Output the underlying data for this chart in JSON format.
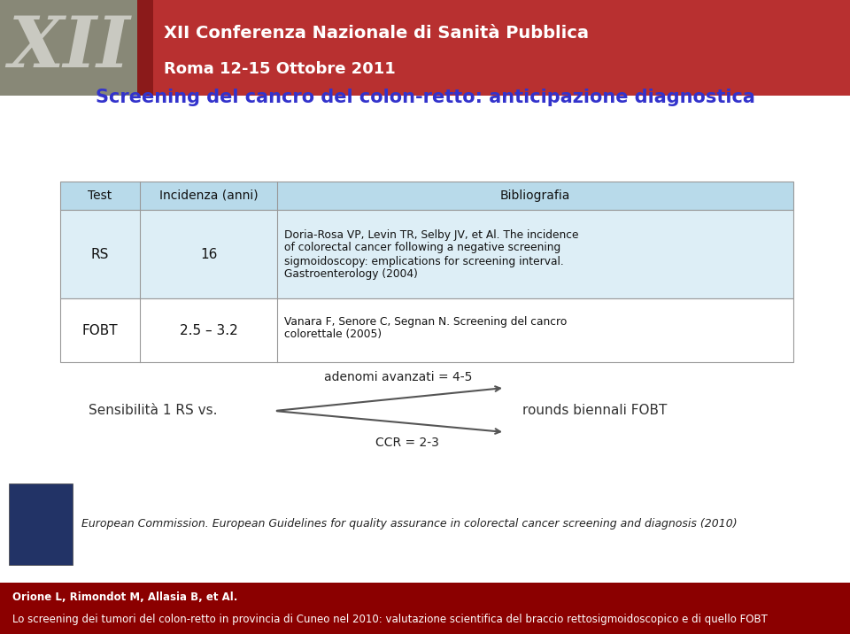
{
  "header_bg": "#b83030",
  "header_text1": "XII Conferenza Nazionale di Sanità Pubblica",
  "header_text2": "Roma 12-15 Ottobre 2011",
  "slide_title": "Screening del cancro del colon-retto: anticipazione diagnostica",
  "slide_title_color": "#3333cc",
  "table_header_bg": "#b8daea",
  "table_row1_bg": "#ddeef6",
  "table_row2_bg": "#ffffff",
  "table_col_headers": [
    "Test",
    "Incidenza (anni)",
    "Bibliografia"
  ],
  "table_rows": [
    [
      "RS",
      "16",
      "Doria-Rosa VP, Levin TR, Selby JV, et Al. The incidence\nof colorectal cancer following a negative screening\nsigmoidoscopy: emplications for screening interval.\nGastroenterology (2004)"
    ],
    [
      "FOBT",
      "2.5 – 3.2",
      "Vanara F, Senore C, Segnan N. Screening del cancro\ncolorettale (2005)"
    ]
  ],
  "sensibility_text": "Sensibilità 1 RS vs.",
  "arrow_label_top": "adenomi avanzati = 4-5",
  "arrow_label_bottom": "CCR = 2-3",
  "rounds_text": "rounds biennali FOBT",
  "footer_text1": "European Commission. European Guidelines for quality assurance in colorectal cancer screening and diagnosis (2010)",
  "footer_bar_bg": "#8b0000",
  "footer_bar_text1": "Orione L, Rimondot M, Allasia B, et Al.",
  "footer_bar_text2": "Lo screening dei tumori del colon-retto in provincia di Cuneo nel 2010: valutazione scientifica del braccio rettosigmoidoscopico e di quello FOBT",
  "footer_bar_text_color": "#ffffff",
  "bg_color": "#ffffff"
}
